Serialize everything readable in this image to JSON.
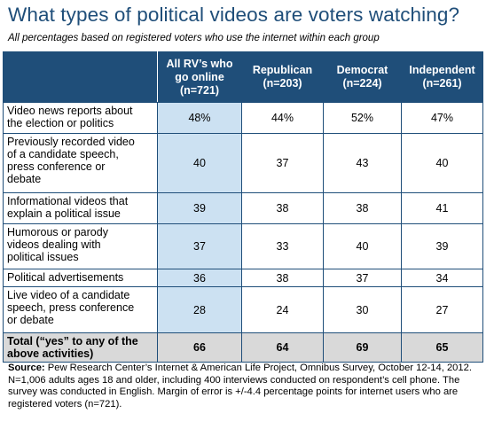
{
  "title": "What types of political videos are voters watching?",
  "subtitle": "All percentages based on registered voters who use the internet within each group",
  "chart_data": {
    "type": "table",
    "columns": [
      "All RV's who go online (n=721)",
      "Republican (n=203)",
      "Democrat (n=224)",
      "Independent (n=261)"
    ],
    "rows": [
      {
        "label": "Video news reports about the election or politics",
        "values": [
          "48%",
          "44%",
          "52%",
          "47%"
        ]
      },
      {
        "label": "Previously recorded video of a candidate speech, press conference or debate",
        "values": [
          "40",
          "37",
          "43",
          "40"
        ]
      },
      {
        "label": "Informational videos that explain a political issue",
        "values": [
          "39",
          "38",
          "38",
          "41"
        ]
      },
      {
        "label": "Humorous or parody videos dealing with political issues",
        "values": [
          "37",
          "33",
          "40",
          "39"
        ]
      },
      {
        "label": "Political advertisements",
        "values": [
          "36",
          "38",
          "37",
          "34"
        ]
      },
      {
        "label": "Live video of a candidate speech, press conference or debate",
        "values": [
          "28",
          "24",
          "30",
          "27"
        ]
      },
      {
        "label": "Total (“yes” to any of the above activities)",
        "values": [
          "66",
          "64",
          "69",
          "65"
        ]
      }
    ]
  },
  "header": {
    "col1": {
      "line1": "All RV’s who",
      "line2": "go online",
      "line3": "(n=721)"
    },
    "col2": {
      "line1": "Republican",
      "line2": "(n=203)"
    },
    "col3": {
      "line1": "Democrat",
      "line2": "(n=224)"
    },
    "col4": {
      "line1": "Independent",
      "line2": "(n=261)"
    }
  },
  "rows": [
    {
      "label_lines": [
        "Video news reports about",
        "the election or politics"
      ],
      "values": [
        "48%",
        "44%",
        "52%",
        "47%"
      ]
    },
    {
      "label_lines": [
        "Previously recorded video",
        "of a candidate speech,",
        "press conference or",
        "debate"
      ],
      "values": [
        "40",
        "37",
        "43",
        "40"
      ]
    },
    {
      "label_lines": [
        "Informational videos that",
        "explain a political issue"
      ],
      "values": [
        "39",
        "38",
        "38",
        "41"
      ]
    },
    {
      "label_lines": [
        "Humorous or parody",
        "videos dealing with",
        "political issues"
      ],
      "values": [
        "37",
        "33",
        "40",
        "39"
      ]
    },
    {
      "label_lines": [
        "Political advertisements"
      ],
      "values": [
        "36",
        "38",
        "37",
        "34"
      ]
    },
    {
      "label_lines": [
        "Live video of a candidate",
        "speech, press conference",
        "or debate"
      ],
      "values": [
        "28",
        "24",
        "30",
        "27"
      ]
    },
    {
      "label_lines": [
        "Total (“yes” to any of the",
        "above activities)"
      ],
      "values": [
        "66",
        "64",
        "69",
        "65"
      ]
    }
  ],
  "source": {
    "label": "Source:",
    "text": " Pew Research Center’s Internet & American Life Project, Omnibus Survey, October 12-14, 2012. N=1,006 adults ages 18 and older, including 400 interviews conducted on respondent’s cell phone. The survey was conducted in English. Margin of error is +/-4.4 percentage points for internet users who are registered voters (n=721)."
  },
  "colors": {
    "header_bg": "#1f4e79",
    "title": "#1f4e79",
    "highlight_column": "#cce1f2",
    "total_row": "#d9d9d9"
  }
}
